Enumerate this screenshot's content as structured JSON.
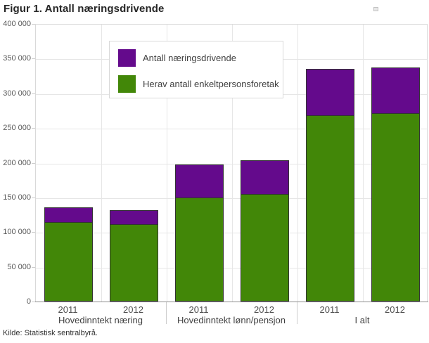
{
  "title": "Figur 1. Antall næringsdrivende",
  "source": "Kilde: Statistisk sentralbyrå.",
  "colors": {
    "total_purple": "#640a8c",
    "subset_green": "#428708",
    "gridline": "#e6e6e6",
    "frame": "#d9d9d9",
    "axis": "#8c8c8c",
    "bar_border": "#333333",
    "label_text": "#4d4d4d"
  },
  "legend": {
    "items": [
      {
        "label": "Antall næringsdrivende",
        "color": "#640a8c"
      },
      {
        "label": "Herav antall enkeltpersonsforetak",
        "color": "#428708"
      }
    ]
  },
  "chart_data": {
    "type": "bar",
    "title": "Figur 1. Antall næringsdrivende",
    "xlabel": "",
    "ylabel": "",
    "ylim": [
      0,
      400000
    ],
    "y_tick_step": 50000,
    "y_tick_labels_top_to_bottom": [
      "400 000",
      "350 000",
      "300 000",
      "250 000",
      "200 000",
      "150 000",
      "100 000",
      "50 000",
      "0"
    ],
    "grid": true,
    "legend_position": "top-left-inside",
    "groups": [
      "Hovedinntekt næring",
      "Hovedinntekt lønn/pensjon",
      "I alt"
    ],
    "categories": [
      "2011",
      "2012",
      "2011",
      "2012",
      "2011",
      "2012"
    ],
    "series": [
      {
        "name": "Antall næringsdrivende",
        "color": "#640a8c",
        "values": [
          136000,
          132000,
          197000,
          204000,
          335000,
          337000
        ]
      },
      {
        "name": "Herav antall enkeltpersonsforetak",
        "color": "#428708",
        "values": [
          114000,
          111000,
          150000,
          155000,
          268000,
          271000
        ]
      }
    ]
  }
}
